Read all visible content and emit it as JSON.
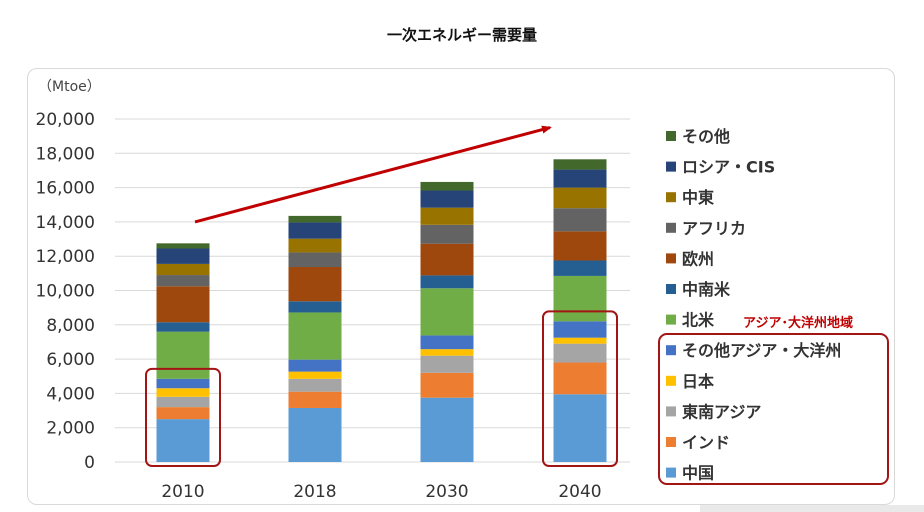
{
  "chart_data": {
    "type": "bar",
    "stacked": true,
    "title": "一次エネルギー需要量",
    "unit_label": "（Mtoe）",
    "categories": [
      "2010",
      "2018",
      "2030",
      "2040"
    ],
    "ylim": [
      0,
      20000
    ],
    "yticks": [
      "0",
      "2,000",
      "4,000",
      "6,000",
      "8,000",
      "10,000",
      "12,000",
      "14,000",
      "16,000",
      "18,000",
      "20,000"
    ],
    "grid": true,
    "legend_position": "right",
    "series": [
      {
        "name": "中国",
        "color": "#5b9bd5",
        "values": [
          2500,
          3150,
          3750,
          3950
        ]
      },
      {
        "name": "インド",
        "color": "#ed7d31",
        "values": [
          700,
          950,
          1450,
          1850
        ]
      },
      {
        "name": "東南アジア",
        "color": "#a5a5a5",
        "values": [
          600,
          750,
          1000,
          1100
        ]
      },
      {
        "name": "日本",
        "color": "#ffc000",
        "values": [
          500,
          420,
          380,
          350
        ]
      },
      {
        "name": "その他アジア・大洋州",
        "color": "#4472c4",
        "values": [
          550,
          700,
          800,
          950
        ]
      },
      {
        "name": "北米",
        "color": "#70ad47",
        "values": [
          2750,
          2750,
          2750,
          2650
        ]
      },
      {
        "name": "中南米",
        "color": "#255e91",
        "values": [
          550,
          650,
          750,
          900
        ]
      },
      {
        "name": "欧州",
        "color": "#9e480e",
        "values": [
          2100,
          2000,
          1850,
          1700
        ]
      },
      {
        "name": "アフリカ",
        "color": "#636363",
        "values": [
          650,
          850,
          1100,
          1350
        ]
      },
      {
        "name": "中東",
        "color": "#997300",
        "values": [
          650,
          800,
          1000,
          1200
        ]
      },
      {
        "name": "ロシア・CIS",
        "color": "#264478",
        "values": [
          900,
          950,
          1000,
          1050
        ]
      },
      {
        "name": "その他",
        "color": "#43682b",
        "values": [
          300,
          380,
          500,
          600
        ]
      }
    ],
    "legend_order": [
      "その他",
      "ロシア・CIS",
      "中東",
      "アフリカ",
      "欧州",
      "中南米",
      "北米",
      "その他アジア・大洋州",
      "日本",
      "東南アジア",
      "インド",
      "中国"
    ],
    "annotation": "アジア･大洋州地域",
    "highlighted_categories": [
      "2010",
      "2040"
    ],
    "trend_arrow": {
      "color": "#c00000",
      "from": {
        "x": "2010",
        "y": 14000
      },
      "to": {
        "x": "2040",
        "y": 19500
      }
    }
  }
}
